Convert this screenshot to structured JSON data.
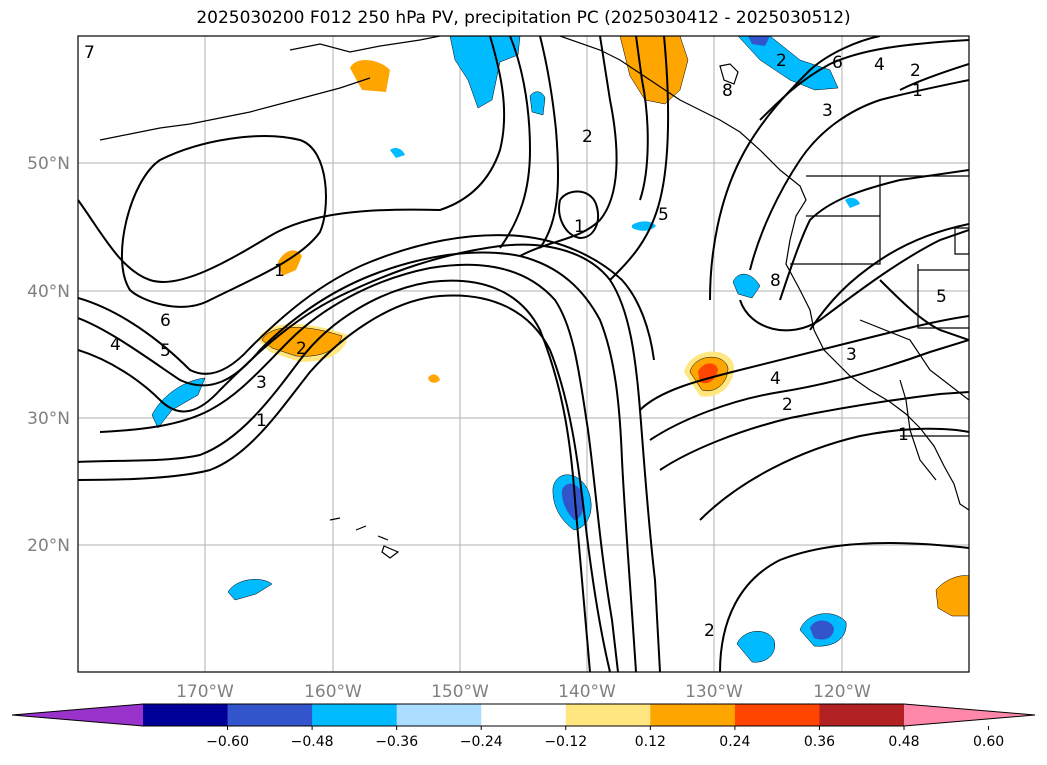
{
  "title": "2025030200 F012 250 hPa PV, precipitation PC (2025030412 - 2025030512)",
  "lat_labels": [
    "50°N",
    "40°N",
    "30°N",
    "20°N"
  ],
  "lon_labels": [
    "170°W",
    "160°W",
    "150°W",
    "140°W",
    "130°W",
    "120°W"
  ],
  "colorbar": {
    "tick_labels": [
      "−0.60",
      "−0.48",
      "−0.36",
      "−0.24",
      "−0.12",
      "0.12",
      "0.24",
      "0.36",
      "0.48",
      "0.60"
    ],
    "colors": [
      "#9933cc",
      "#000099",
      "#3355cc",
      "#00bbff",
      "#aaddff",
      "#ffffff",
      "#ffe680",
      "#ffa500",
      "#ff4500",
      "#b22222",
      "#ff88aa"
    ]
  },
  "pv_contour_labels": [
    "7",
    "6",
    "5",
    "4",
    "3",
    "2",
    "1",
    "1",
    "2",
    "5",
    "8",
    "8",
    "6",
    "4",
    "3",
    "2",
    "1",
    "3",
    "4",
    "2",
    "1",
    "5",
    "2",
    "1",
    "2"
  ],
  "colors": {
    "positive_light": "#ffe680",
    "positive_mid": "#ffa500",
    "positive_strong": "#ff4500",
    "negative_light": "#aaddff",
    "negative_mid": "#00bbff",
    "negative_strong": "#3355cc"
  }
}
